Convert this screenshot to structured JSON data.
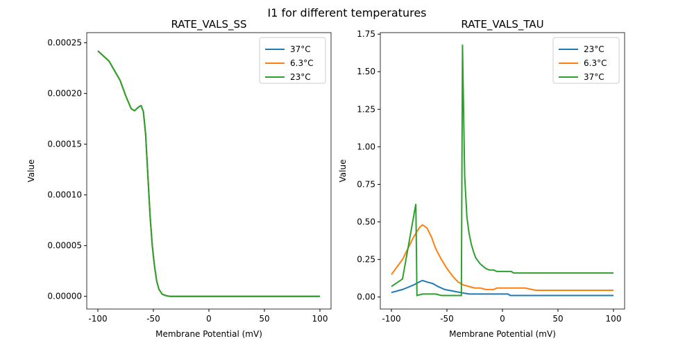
{
  "suptitle": "I1 for different temperatures",
  "chart_data": [
    {
      "type": "line",
      "title": "RATE_VALS_SS",
      "xlabel": "Membrane Potential (mV)",
      "ylabel": "Value",
      "xlim": [
        -110,
        110
      ],
      "ylim": [
        -1.25e-05,
        0.00026
      ],
      "xticks": [
        -100,
        -50,
        0,
        50,
        100
      ],
      "yticks": [
        0,
        5e-05,
        0.0001,
        0.00015,
        0.0002,
        0.00025
      ],
      "ytick_labels": [
        "0.00000",
        "0.00005",
        "0.00010",
        "0.00015",
        "0.00020",
        "0.00025"
      ],
      "legend_position": "top-right",
      "grid": false,
      "series": [
        {
          "name": "37°C",
          "color": "#1f77b4",
          "x": [
            -100,
            -90,
            -80,
            -75,
            -70,
            -67,
            -63,
            -61,
            -59,
            -57,
            -55,
            -53,
            -51,
            -49,
            -47,
            -45,
            -42,
            -38,
            -35,
            100
          ],
          "y": [
            0.000242,
            0.000232,
            0.000213,
            0.000198,
            0.000185,
            0.000183,
            0.000187,
            0.000188,
            0.000182,
            0.00016,
            0.00012,
            8e-05,
            5e-05,
            3e-05,
            1.5e-05,
            7e-06,
            2e-06,
            5e-07,
            0,
            0
          ]
        },
        {
          "name": "6.3°C",
          "color": "#ff7f0e",
          "x": [
            -100,
            -90,
            -80,
            -75,
            -70,
            -67,
            -63,
            -61,
            -59,
            -57,
            -55,
            -53,
            -51,
            -49,
            -47,
            -45,
            -42,
            -38,
            -35,
            100
          ],
          "y": [
            0.000242,
            0.000232,
            0.000213,
            0.000198,
            0.000185,
            0.000183,
            0.000187,
            0.000188,
            0.000182,
            0.00016,
            0.00012,
            8e-05,
            5e-05,
            3e-05,
            1.5e-05,
            7e-06,
            2e-06,
            5e-07,
            0,
            0
          ]
        },
        {
          "name": "23°C",
          "color": "#2ca02c",
          "x": [
            -100,
            -90,
            -80,
            -75,
            -70,
            -67,
            -63,
            -61,
            -59,
            -57,
            -55,
            -53,
            -51,
            -49,
            -47,
            -45,
            -42,
            -38,
            -35,
            100
          ],
          "y": [
            0.000242,
            0.000232,
            0.000213,
            0.000198,
            0.000185,
            0.000183,
            0.000187,
            0.000188,
            0.000182,
            0.00016,
            0.00012,
            8e-05,
            5e-05,
            3e-05,
            1.5e-05,
            7e-06,
            2e-06,
            5e-07,
            0,
            0
          ]
        }
      ]
    },
    {
      "type": "line",
      "title": "RATE_VALS_TAU",
      "xlabel": "Membrane Potential (mV)",
      "ylabel": "Value",
      "xlim": [
        -110,
        110
      ],
      "ylim": [
        -0.08,
        1.76
      ],
      "xticks": [
        -100,
        -50,
        0,
        50,
        100
      ],
      "yticks": [
        0,
        0.25,
        0.5,
        0.75,
        1.0,
        1.25,
        1.5,
        1.75
      ],
      "ytick_labels": [
        "0.00",
        "0.25",
        "0.50",
        "0.75",
        "1.00",
        "1.25",
        "1.50",
        "1.75"
      ],
      "legend_position": "top-right",
      "grid": false,
      "series": [
        {
          "name": "23°C",
          "color": "#1f77b4",
          "x": [
            -100,
            -90,
            -80,
            -75,
            -72,
            -68,
            -63,
            -58,
            -52,
            -45,
            -38,
            -30,
            5,
            7,
            100
          ],
          "y": [
            0.03,
            0.05,
            0.08,
            0.1,
            0.11,
            0.1,
            0.09,
            0.07,
            0.05,
            0.04,
            0.03,
            0.02,
            0.02,
            0.01,
            0.01
          ]
        },
        {
          "name": "6.3°C",
          "color": "#ff7f0e",
          "x": [
            -100,
            -90,
            -80,
            -75,
            -72,
            -68,
            -64,
            -60,
            -55,
            -50,
            -45,
            -40,
            -35,
            -30,
            -25,
            -20,
            -15,
            -8,
            -5,
            20,
            30,
            100
          ],
          "y": [
            0.15,
            0.25,
            0.4,
            0.46,
            0.48,
            0.46,
            0.4,
            0.32,
            0.25,
            0.19,
            0.14,
            0.1,
            0.08,
            0.07,
            0.06,
            0.06,
            0.05,
            0.05,
            0.06,
            0.06,
            0.045,
            0.045
          ]
        },
        {
          "name": "37°C",
          "color": "#2ca02c",
          "x": [
            -100,
            -90,
            -78,
            -77,
            -72,
            -60,
            -55,
            -37,
            -36,
            -34,
            -32,
            -30,
            -28,
            -26,
            -24,
            -20,
            -15,
            -12,
            -8,
            -5,
            8,
            10,
            100
          ],
          "y": [
            0.07,
            0.12,
            0.62,
            0.01,
            0.02,
            0.02,
            0.01,
            0.01,
            1.68,
            0.8,
            0.53,
            0.42,
            0.35,
            0.3,
            0.26,
            0.22,
            0.19,
            0.18,
            0.18,
            0.17,
            0.17,
            0.16,
            0.16
          ]
        }
      ]
    }
  ]
}
